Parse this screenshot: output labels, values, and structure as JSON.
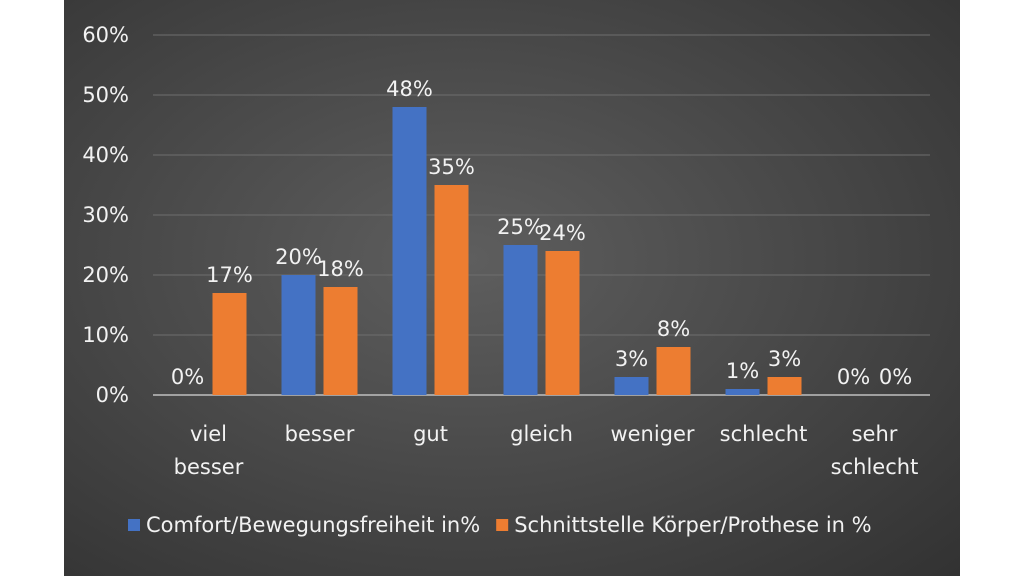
{
  "chart_data": {
    "type": "bar",
    "categories": [
      [
        "viel",
        "besser"
      ],
      [
        "besser"
      ],
      [
        "gut"
      ],
      [
        "gleich"
      ],
      [
        "weniger"
      ],
      [
        "schlecht"
      ],
      [
        "sehr",
        "schlecht"
      ]
    ],
    "series": [
      {
        "name": "Comfort/Bewegungsfreiheit  in%",
        "values": [
          0,
          20,
          48,
          25,
          3,
          1,
          0
        ],
        "labels": [
          "0%",
          "20%",
          "48%",
          "25%",
          "3%",
          "1%",
          "0%"
        ],
        "color": "#4472c4"
      },
      {
        "name": "Schnittstelle Körper/Prothese in %",
        "values": [
          17,
          18,
          35,
          24,
          8,
          3,
          0
        ],
        "labels": [
          "17%",
          "18%",
          "35%",
          "24%",
          "8%",
          "3%",
          "0%"
        ],
        "color": "#ed7d31"
      }
    ],
    "yticks": [
      "0%",
      "10%",
      "20%",
      "30%",
      "40%",
      "50%",
      "60%"
    ],
    "ylim": [
      0,
      60
    ],
    "grid": true,
    "legend_position": "bottom",
    "background": "#4a4a4a",
    "text_color": "#f2f2f2",
    "gridline_color": "#6e6e6e"
  }
}
